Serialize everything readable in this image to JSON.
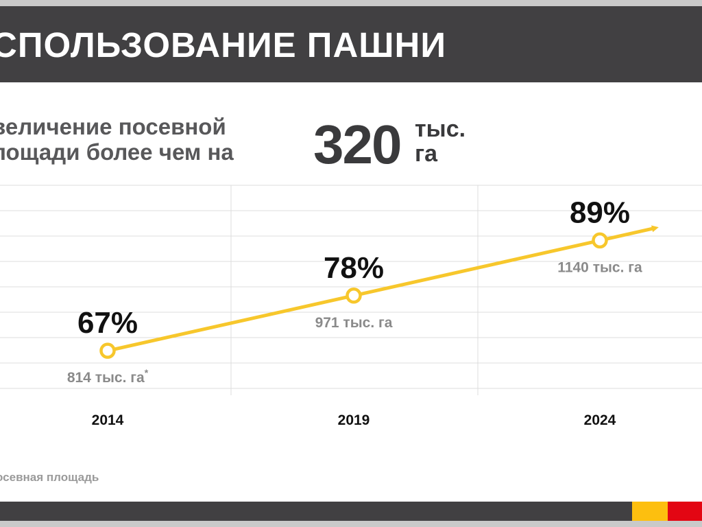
{
  "header": {
    "title": "СПОЛЬЗОВАНИЕ ПАШНИ"
  },
  "summary": {
    "line1": "величение посевной",
    "line2": "лощади более чем на",
    "value": "320",
    "unit_line1": "тыс.",
    "unit_line2": "га"
  },
  "footnote": "осевная площадь",
  "colors": {
    "title_bar": "#414042",
    "line": "#f7c72c",
    "accent_yellow": "#fdbf0f",
    "accent_red": "#e30613",
    "grid": "#dcdcdc"
  },
  "chart_data": {
    "type": "line",
    "title": "",
    "xlabel": "",
    "ylabel": "",
    "categories": [
      "2014",
      "2019",
      "2024"
    ],
    "series": [
      {
        "values": [
          67,
          78,
          89
        ],
        "value_labels": [
          "67%",
          "78%",
          "89%"
        ],
        "area_labels": [
          "814 тыс. га",
          "971 тыс. га",
          "1140 тыс. га"
        ],
        "area_label_marks": [
          "*",
          "",
          ""
        ]
      }
    ],
    "ylim": [
      59.5,
      100
    ],
    "grid": true,
    "legend": "none"
  }
}
